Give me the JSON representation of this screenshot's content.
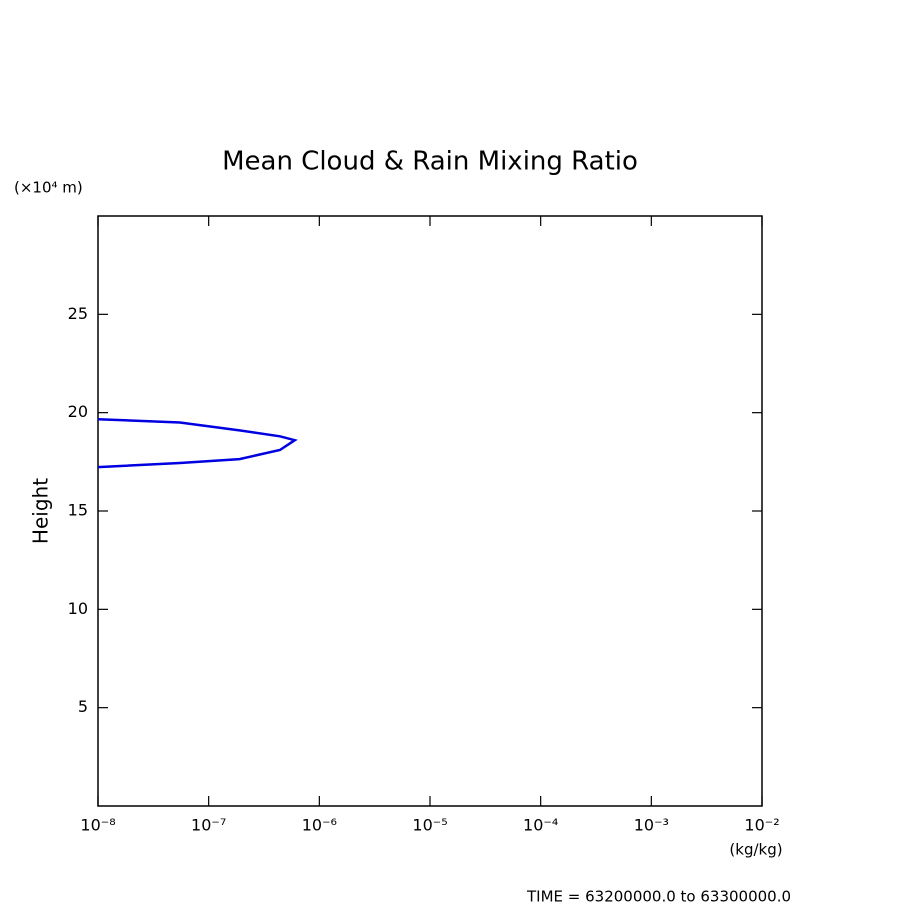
{
  "chart_data": {
    "type": "line",
    "title": "Mean Cloud & Rain Mixing Ratio",
    "y_unit": "(×10⁴ m)",
    "y_label": "Height",
    "x_unit": "(kg/kg)",
    "footer": "TIME = 63200000.0 to 63300000.0",
    "xscale": "log",
    "xlim": [
      1e-08,
      0.01
    ],
    "xticks": [
      {
        "value": 1e-08,
        "label": "10⁻⁸"
      },
      {
        "value": 1e-07,
        "label": "10⁻⁷"
      },
      {
        "value": 1e-06,
        "label": "10⁻⁶"
      },
      {
        "value": 1e-05,
        "label": "10⁻⁵"
      },
      {
        "value": 0.0001,
        "label": "10⁻⁴"
      },
      {
        "value": 0.001,
        "label": "10⁻³"
      },
      {
        "value": 0.01,
        "label": "10⁻²"
      }
    ],
    "ylim": [
      0,
      30
    ],
    "yticks": [
      5,
      10,
      15,
      20,
      25
    ],
    "series": [
      {
        "color": "#0000e0",
        "x": [
          1e-08,
          5.5e-08,
          1.9e-07,
          4.4e-07,
          6e-07,
          4.4e-07,
          1.9e-07,
          5.5e-08,
          1e-08
        ],
        "values": [
          19.67,
          19.5,
          19.1,
          18.8,
          18.6,
          18.1,
          17.64,
          17.44,
          17.23
        ]
      }
    ]
  }
}
